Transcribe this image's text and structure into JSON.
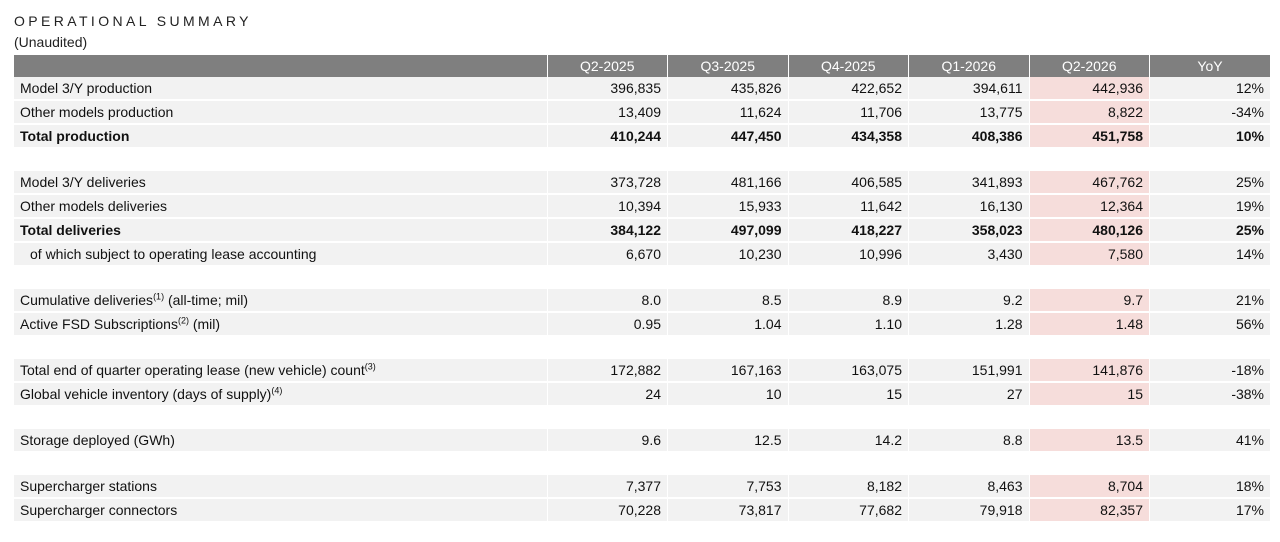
{
  "title": "OPERATIONAL SUMMARY",
  "subtitle": "(Unaudited)",
  "columns": [
    "Q2-2025",
    "Q3-2025",
    "Q4-2025",
    "Q1-2026",
    "Q2-2026",
    "YoY"
  ],
  "highlight_column": "Q2-2026",
  "colors": {
    "header_bg": "#7f7f7f",
    "row_bg": "#f2f2f2",
    "highlight_bg": "#f6dddb"
  },
  "groups": [
    [
      {
        "label": "Model 3/Y production",
        "values": [
          "396,835",
          "435,826",
          "422,652",
          "394,611",
          "442,936",
          "12%"
        ]
      },
      {
        "label": "Other models production",
        "values": [
          "13,409",
          "11,624",
          "11,706",
          "13,775",
          "8,822",
          "-34%"
        ]
      },
      {
        "label": "Total production",
        "bold": true,
        "values": [
          "410,244",
          "447,450",
          "434,358",
          "408,386",
          "451,758",
          "10%"
        ]
      }
    ],
    [
      {
        "label": "Model 3/Y deliveries",
        "values": [
          "373,728",
          "481,166",
          "406,585",
          "341,893",
          "467,762",
          "25%"
        ]
      },
      {
        "label": "Other models deliveries",
        "values": [
          "10,394",
          "15,933",
          "11,642",
          "16,130",
          "12,364",
          "19%"
        ]
      },
      {
        "label": "Total deliveries",
        "bold": true,
        "values": [
          "384,122",
          "497,099",
          "418,227",
          "358,023",
          "480,126",
          "25%"
        ]
      },
      {
        "label": "of which subject to operating lease accounting",
        "indent": true,
        "values": [
          "6,670",
          "10,230",
          "10,996",
          "3,430",
          "7,580",
          "14%"
        ]
      }
    ],
    [
      {
        "label": "Cumulative deliveries",
        "sup": "(1)",
        "suffix": " (all-time; mil)",
        "values": [
          "8.0",
          "8.5",
          "8.9",
          "9.2",
          "9.7",
          "21%"
        ]
      },
      {
        "label": "Active FSD Subscriptions",
        "sup": "(2)",
        "suffix": " (mil)",
        "values": [
          "0.95",
          "1.04",
          "1.10",
          "1.28",
          "1.48",
          "56%"
        ]
      }
    ],
    [
      {
        "label": "Total end of quarter operating lease (new vehicle) count",
        "sup": "(3)",
        "suffix": "",
        "values": [
          "172,882",
          "167,163",
          "163,075",
          "151,991",
          "141,876",
          "-18%"
        ]
      },
      {
        "label": "Global vehicle inventory (days of supply)",
        "sup": "(4)",
        "suffix": "",
        "values": [
          "24",
          "10",
          "15",
          "27",
          "15",
          "-38%"
        ]
      }
    ],
    [
      {
        "label": "Storage deployed (GWh)",
        "values": [
          "9.6",
          "12.5",
          "14.2",
          "8.8",
          "13.5",
          "41%"
        ]
      }
    ],
    [
      {
        "label": "Supercharger stations",
        "values": [
          "7,377",
          "7,753",
          "8,182",
          "8,463",
          "8,704",
          "18%"
        ]
      },
      {
        "label": "Supercharger connectors",
        "values": [
          "70,228",
          "73,817",
          "77,682",
          "79,918",
          "82,357",
          "17%"
        ]
      }
    ]
  ]
}
